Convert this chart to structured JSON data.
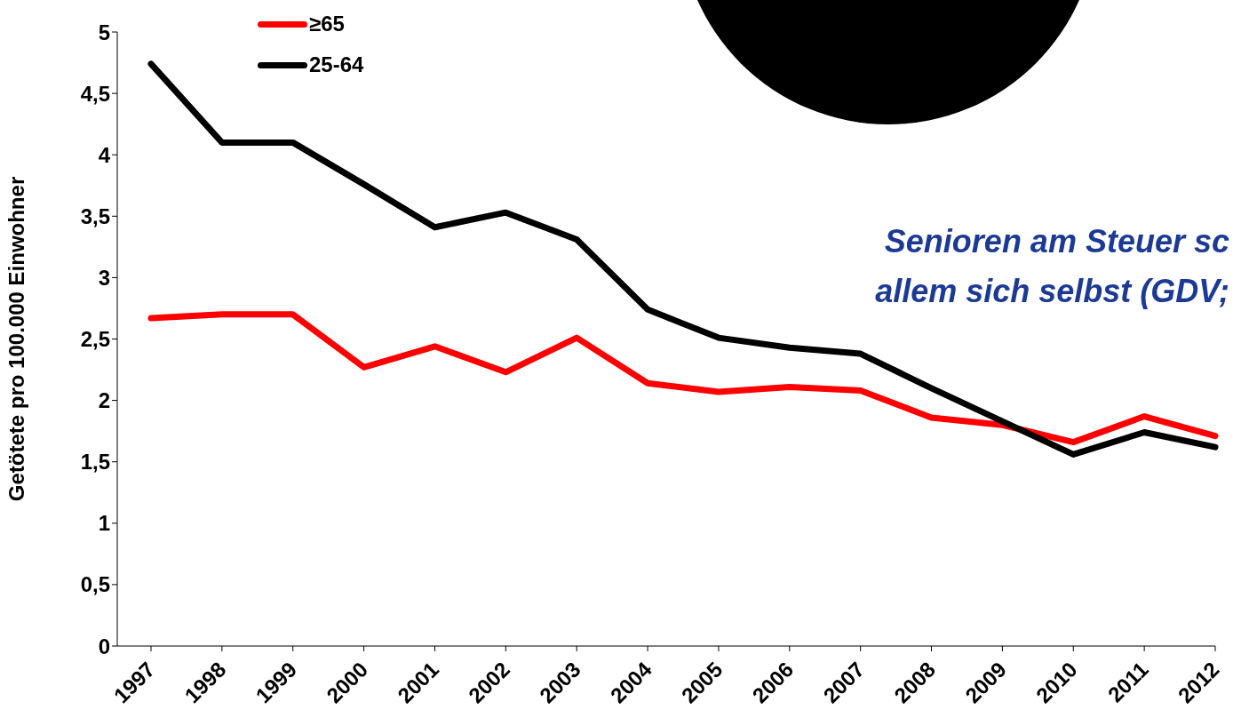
{
  "chart_data": {
    "type": "line",
    "ylabel": "Getötete pro 100.000 Einwohner",
    "categories": [
      "1997",
      "1998",
      "1999",
      "2000",
      "2001",
      "2002",
      "2003",
      "2004",
      "2005",
      "2006",
      "2007",
      "2008",
      "2009",
      "2010",
      "2011",
      "2012"
    ],
    "series": [
      {
        "name": "≥65",
        "color": "#ff0000",
        "values": [
          2.67,
          2.7,
          2.7,
          2.27,
          2.44,
          2.23,
          2.51,
          2.14,
          2.07,
          2.11,
          2.08,
          1.86,
          1.8,
          1.66,
          1.87,
          1.71
        ]
      },
      {
        "name": "25-64",
        "color": "#000000",
        "values": [
          4.74,
          4.1,
          4.1,
          3.76,
          3.41,
          3.53,
          3.31,
          2.74,
          2.51,
          2.43,
          2.38,
          2.1,
          1.83,
          1.56,
          1.74,
          1.62
        ]
      }
    ],
    "ylim": [
      0,
      5
    ],
    "yticks": [
      0,
      {
        "value": 0.5,
        "label": "0,5"
      },
      1,
      {
        "value": 1.5,
        "label": "1,5"
      },
      2,
      {
        "value": 2.5,
        "label": "2,5"
      },
      3,
      {
        "value": 3.5,
        "label": "3,5"
      },
      4,
      {
        "value": 4.5,
        "label": "4,5"
      },
      5
    ],
    "annotations": [
      "Senioren am Steuer sc",
      "allem sich selbst (GDV;"
    ],
    "legend": "top left",
    "grid": false,
    "marker": "none",
    "line_style": "solid"
  }
}
